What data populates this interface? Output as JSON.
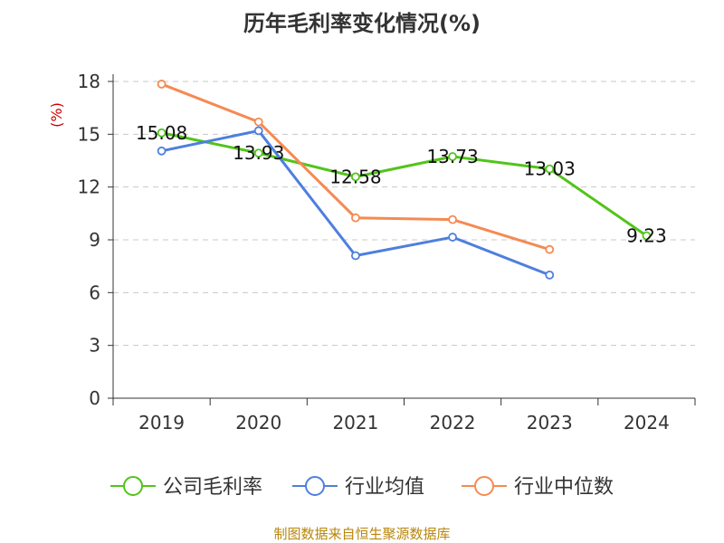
{
  "chart_data": {
    "type": "line",
    "title": "历年毛利率变化情况(%)",
    "ylabel": "(%)",
    "xlabel": "",
    "categories": [
      "2019",
      "2020",
      "2021",
      "2022",
      "2023",
      "2024"
    ],
    "ylim": [
      0,
      18
    ],
    "yticks": [
      0,
      3,
      6,
      9,
      12,
      15,
      18
    ],
    "grid": true,
    "legend_position": "bottom",
    "series": [
      {
        "name": "公司毛利率",
        "color": "#52c41a",
        "values": [
          15.08,
          13.93,
          12.58,
          13.73,
          13.03,
          9.23
        ],
        "labels": true
      },
      {
        "name": "行业均值",
        "color": "#4e7fde",
        "values": [
          14.05,
          15.2,
          8.1,
          9.15,
          7.0,
          null
        ],
        "labels": false
      },
      {
        "name": "行业中位数",
        "color": "#f58a52",
        "values": [
          17.85,
          15.7,
          10.25,
          10.15,
          8.45,
          null
        ],
        "labels": false
      }
    ]
  },
  "source": "制图数据来自恒生聚源数据库"
}
